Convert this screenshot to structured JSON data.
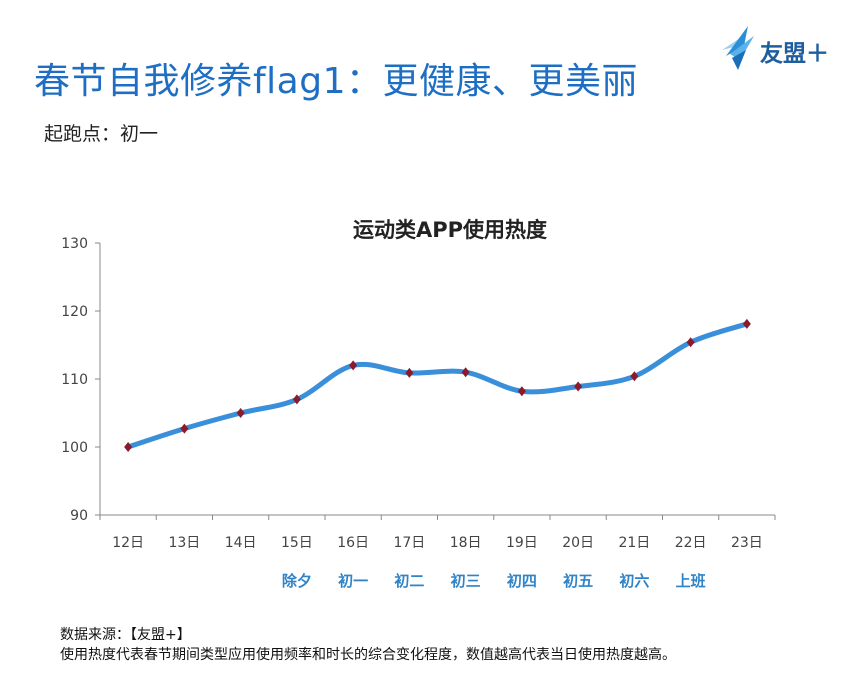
{
  "header": {
    "title": "春节自我修养flag1：更健康、更美丽",
    "subtitle": "起跑点：初一",
    "brand": "友盟＋"
  },
  "colors": {
    "title": "#1e6fc4",
    "line": "#3a8fdb",
    "marker": "#8b1a2b",
    "festival_label": "#2f84c8",
    "axis": "#888888"
  },
  "chart_data": {
    "type": "line",
    "title": "运动类APP使用热度",
    "categories": [
      "12日",
      "13日",
      "14日",
      "15日",
      "16日",
      "17日",
      "18日",
      "19日",
      "20日",
      "21日",
      "22日",
      "23日"
    ],
    "festival_labels": [
      "",
      "",
      "",
      "除夕",
      "初一",
      "初二",
      "初三",
      "初四",
      "初五",
      "初六",
      "上班",
      ""
    ],
    "series": [
      {
        "name": "运动类APP使用热度",
        "values": [
          100,
          102.7,
          105,
          107,
          112,
          110.9,
          111,
          108.2,
          108.9,
          110.4,
          115.4,
          118.1
        ]
      }
    ],
    "ylim": [
      90,
      130
    ],
    "yticks": [
      90,
      100,
      110,
      120,
      130
    ],
    "xlabel": "",
    "ylabel": "",
    "grid": false,
    "legend": "none"
  },
  "footer": {
    "source": "数据来源：【友盟+】",
    "note": "使用热度代表春节期间类型应用使用频率和时长的综合变化程度，数值越高代表当日使用热度越高。"
  }
}
